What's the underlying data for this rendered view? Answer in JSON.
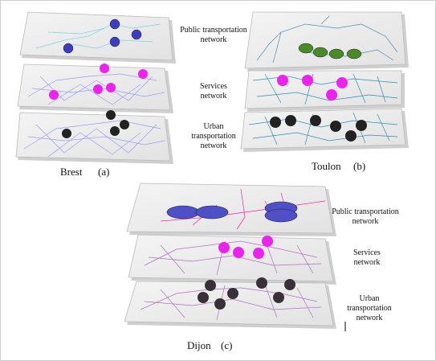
{
  "panels": [
    {
      "city": "Brest",
      "label": "(a)"
    },
    {
      "city": "Toulon",
      "label": "(b)"
    },
    {
      "city": "Dijon",
      "label": "(c)"
    }
  ],
  "layer_labels_ab": [
    [
      "Public transportation",
      "network"
    ],
    [
      "Services",
      "network"
    ],
    [
      "Urban",
      "transportation",
      "network"
    ]
  ],
  "layer_labels_c": [
    [
      "Public transportation",
      "network"
    ],
    [
      "Services",
      "network"
    ],
    [
      "Urban",
      "transportation",
      "network"
    ]
  ]
}
